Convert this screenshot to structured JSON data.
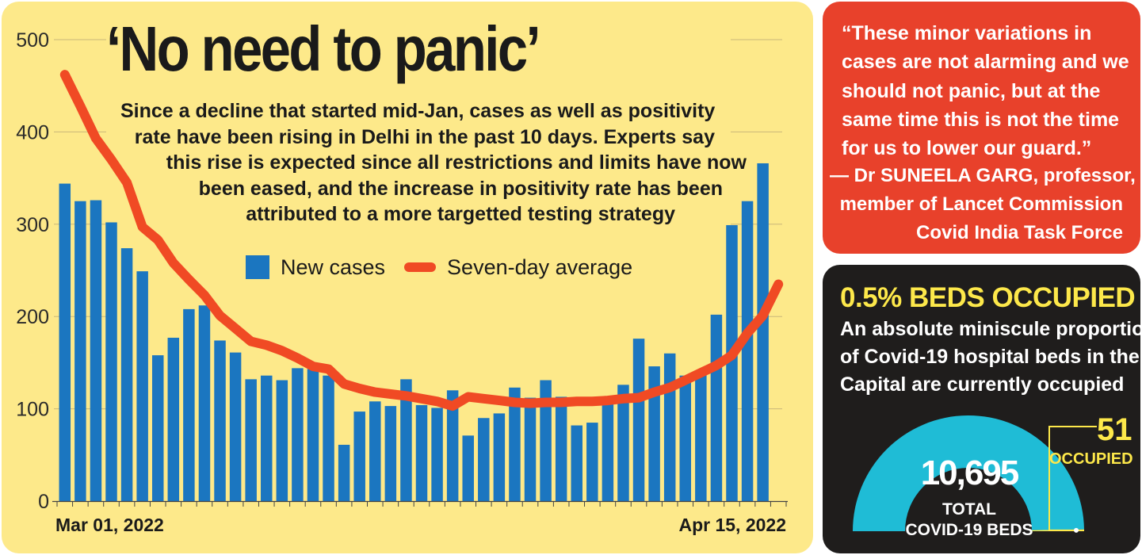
{
  "chart_data": {
    "type": "bar",
    "y_ticks": [
      "0",
      "100",
      "200",
      "300",
      "400",
      "500"
    ],
    "ylim": [
      0,
      500
    ],
    "x_labels": [
      "Mar 01, 2022",
      "Apr 15, 2022"
    ],
    "legend": [
      "New cases",
      "Seven-day average"
    ],
    "x": [
      "2022-02-28",
      "2022-03-01",
      "2022-03-02",
      "2022-03-03",
      "2022-03-04",
      "2022-03-05",
      "2022-03-06",
      "2022-03-07",
      "2022-03-08",
      "2022-03-09",
      "2022-03-10",
      "2022-03-11",
      "2022-03-12",
      "2022-03-13",
      "2022-03-14",
      "2022-03-15",
      "2022-03-16",
      "2022-03-17",
      "2022-03-18",
      "2022-03-19",
      "2022-03-20",
      "2022-03-21",
      "2022-03-22",
      "2022-03-23",
      "2022-03-24",
      "2022-03-25",
      "2022-03-26",
      "2022-03-27",
      "2022-03-28",
      "2022-03-29",
      "2022-03-30",
      "2022-03-31",
      "2022-04-01",
      "2022-04-02",
      "2022-04-03",
      "2022-04-04",
      "2022-04-05",
      "2022-04-06",
      "2022-04-07",
      "2022-04-08",
      "2022-04-09",
      "2022-04-10",
      "2022-04-11",
      "2022-04-12",
      "2022-04-13",
      "2022-04-14",
      "2022-04-15"
    ],
    "series": [
      {
        "name": "New cases",
        "values": [
          344,
          325,
          326,
          302,
          274,
          249,
          158,
          177,
          208,
          212,
          174,
          161,
          132,
          136,
          131,
          144,
          143,
          136,
          61,
          97,
          108,
          103,
          132,
          104,
          101,
          120,
          71,
          90,
          95,
          123,
          112,
          131,
          113,
          82,
          85,
          105,
          126,
          176,
          146,
          160,
          136,
          140,
          202,
          299,
          325,
          366,
          0
        ]
      },
      {
        "name": "Seven-day average",
        "values": [
          462,
          428,
          393,
          370,
          345,
          297,
          283,
          258,
          240,
          223,
          201,
          187,
          173,
          169,
          163,
          155,
          146,
          143,
          127,
          122,
          118,
          116,
          114,
          111,
          108,
          103,
          113,
          111,
          109,
          107,
          106,
          107,
          107,
          108,
          108,
          109,
          111,
          112,
          118,
          123,
          131,
          139,
          147,
          158,
          182,
          201,
          235
        ]
      }
    ]
  },
  "headline": "‘No need to panic’",
  "intro_lines": [
    "Since a decline that started mid-Jan, cases as well as positivity",
    "rate have been rising in Delhi in the past 10 days. Experts say",
    "this rise is expected since all restrictions and limits have now",
    "been eased, and the increase in positivity rate has been",
    "attributed to a more targetted testing strategy"
  ],
  "legend_labels": {
    "bar": "New cases",
    "line": "Seven-day average"
  },
  "quote": {
    "lines": [
      "“These minor variations in",
      "cases are not alarming and we",
      "should not panic, but at the",
      "same time this is not the time",
      "for us to lower our guard.”"
    ],
    "attribution": [
      "— Dr SUNEELA GARG, professor,",
      "member of Lancet Commission",
      "Covid India Task Force"
    ]
  },
  "beds": {
    "title": "0.5% BEDS OCCUPIED",
    "desc_lines": [
      "An absolute miniscule proportion",
      "of Covid-19 hospital beds in the",
      "Capital are currently occupied"
    ],
    "total": "10,695",
    "total_label": [
      "TOTAL",
      "COVID-19 BEDS"
    ],
    "occupied": "51",
    "occupied_label": "OCCUPIED",
    "occupied_fraction": 0.005
  },
  "colors": {
    "panel_bg": "#fde98a",
    "bar": "#1b76c0",
    "line": "#f04a24",
    "quote_bg": "#e8412b",
    "beds_bg": "#1f1d1c",
    "beds_accent": "#fde84a",
    "gauge": "#1fbcd6"
  }
}
